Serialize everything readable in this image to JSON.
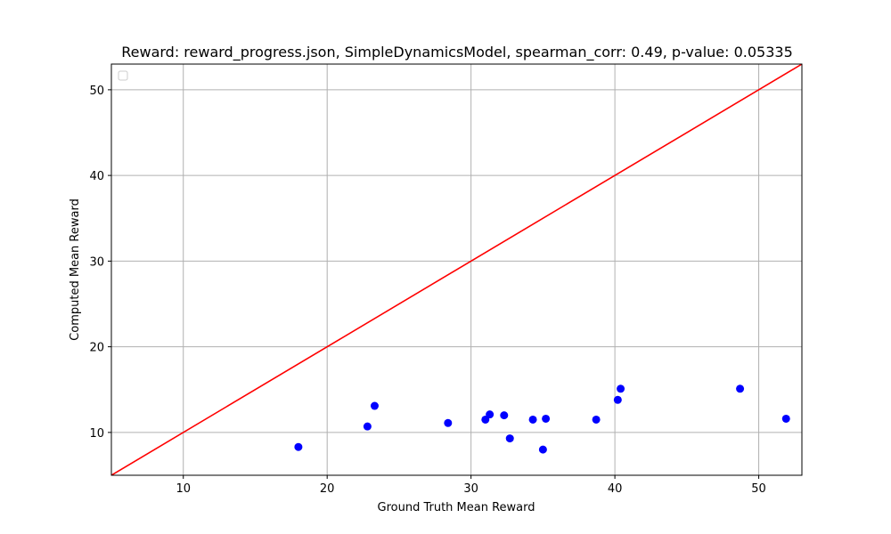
{
  "chart_data": {
    "type": "scatter",
    "title": "Reward: reward_progress.json, SimpleDynamicsModel, spearman_corr: 0.49, p-value: 0.05335",
    "xlabel": "Ground Truth Mean Reward",
    "ylabel": "Computed Mean Reward",
    "xlim": [
      5,
      53
    ],
    "ylim": [
      5,
      53
    ],
    "xticks": [
      10,
      20,
      30,
      40,
      50
    ],
    "yticks": [
      10,
      20,
      30,
      40,
      50
    ],
    "grid": true,
    "legend": "top-left",
    "series": [
      {
        "point_color": "#0000ff",
        "points": [
          {
            "x": 18.0,
            "y": 8.3
          },
          {
            "x": 22.8,
            "y": 10.7
          },
          {
            "x": 23.3,
            "y": 13.1
          },
          {
            "x": 28.4,
            "y": 11.1
          },
          {
            "x": 31.0,
            "y": 11.5
          },
          {
            "x": 31.3,
            "y": 12.1
          },
          {
            "x": 32.3,
            "y": 12.0
          },
          {
            "x": 32.7,
            "y": 9.3
          },
          {
            "x": 34.3,
            "y": 11.5
          },
          {
            "x": 35.0,
            "y": 8.0
          },
          {
            "x": 35.2,
            "y": 11.6
          },
          {
            "x": 38.7,
            "y": 11.5
          },
          {
            "x": 40.2,
            "y": 13.8
          },
          {
            "x": 40.4,
            "y": 15.1
          },
          {
            "x": 48.7,
            "y": 15.1
          },
          {
            "x": 51.9,
            "y": 11.6
          }
        ]
      }
    ],
    "reference_line": {
      "color": "#ff0000",
      "from": [
        5,
        5
      ],
      "to": [
        53,
        53
      ]
    }
  }
}
